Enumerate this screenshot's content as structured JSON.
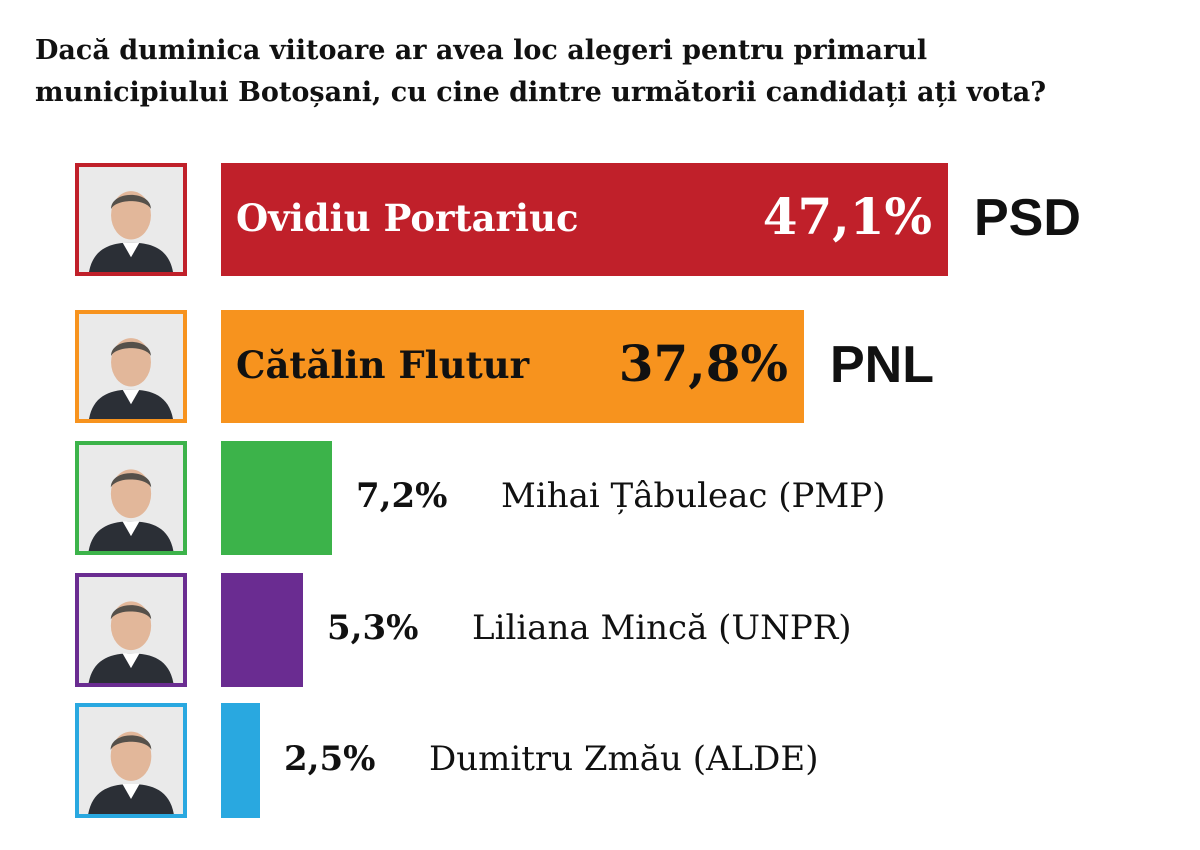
{
  "chart_data": {
    "type": "bar",
    "orientation": "horizontal",
    "title": "Dacă duminica viitoare ar avea loc alegeri pentru primarul municipiului Botoșani, cu cine dintre următorii candidați ați vota?",
    "title_lines": [
      "Dacă duminica viitoare ar avea loc alegeri pentru primarul",
      "municipiului Botoșani, cu cine dintre următorii candidați ați vota?"
    ],
    "categories": [
      "Ovidiu Portariuc",
      "Cătălin Flutur",
      "Mihai Țâbuleac",
      "Liliana Mincă",
      "Dumitru Zmău"
    ],
    "values": [
      47.1,
      37.8,
      7.2,
      5.3,
      2.5
    ],
    "unit": "%",
    "grid": false,
    "legend": "none",
    "candidates": [
      {
        "name": "Ovidiu Portariuc",
        "party": "PSD",
        "value": 47.1,
        "value_label": "47,1%",
        "color": "#c0202a",
        "text_color": "#ffffff",
        "photo_icon": "candidate-portrait"
      },
      {
        "name": "Cătălin Flutur",
        "party": "PNL",
        "value": 37.8,
        "value_label": "37,8%",
        "color": "#f7931e",
        "text_color": "#111111",
        "photo_icon": "candidate-portrait"
      },
      {
        "name": "Mihai Țâbuleac (PMP)",
        "party": "PMP",
        "value": 7.2,
        "value_label": "7,2%",
        "color": "#3cb34a",
        "text_color": "#111111",
        "photo_icon": "candidate-portrait"
      },
      {
        "name": "Liliana Mincă (UNPR)",
        "party": "UNPR",
        "value": 5.3,
        "value_label": "5,3%",
        "color": "#6a2c91",
        "text_color": "#111111",
        "photo_icon": "candidate-portrait"
      },
      {
        "name": "Dumitru Zmău (ALDE)",
        "party": "ALDE",
        "value": 2.5,
        "value_label": "2,5%",
        "color": "#29a8e0",
        "text_color": "#111111",
        "photo_icon": "candidate-portrait"
      }
    ]
  }
}
